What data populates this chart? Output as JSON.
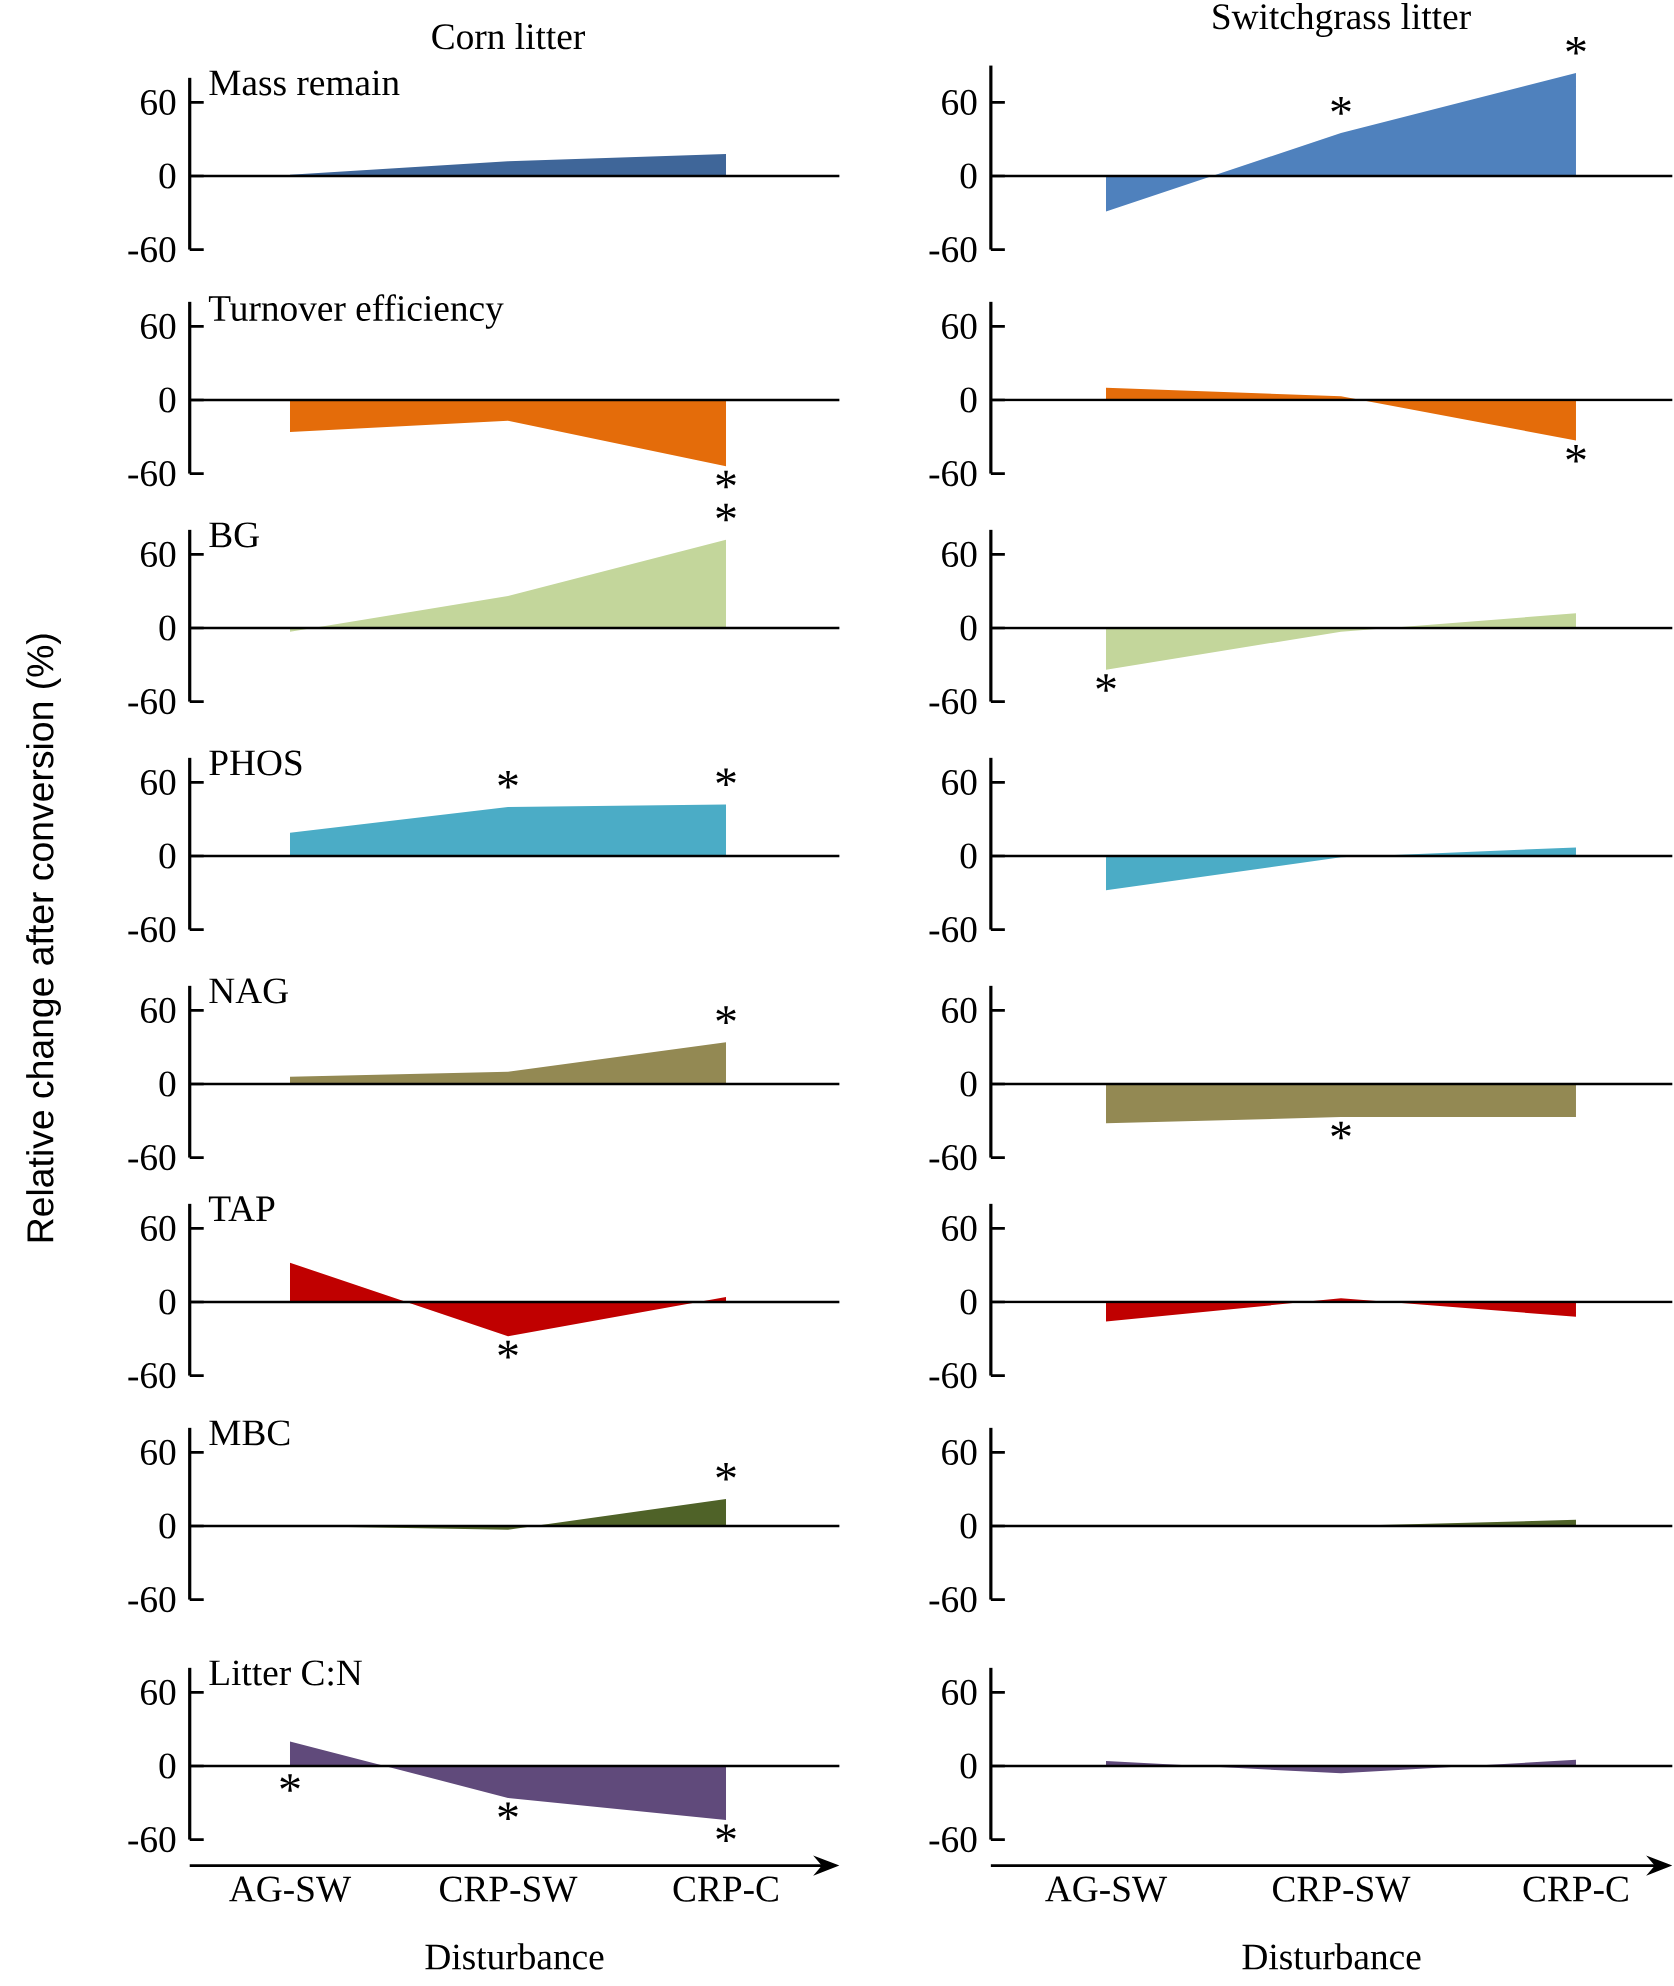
{
  "chart_data": [
    {
      "type": "area",
      "title": "Mass remain",
      "subtitle": "Corn litter",
      "categories": [
        "AG-SW",
        "CRP-SW",
        "CRP-C"
      ],
      "values": [
        1,
        12,
        18
      ],
      "color": "#3f6699",
      "ylim": [
        -60,
        80
      ],
      "yticks": [
        -60,
        0,
        60
      ],
      "tick_labels": "y",
      "ref_lines": [
        {
          "axis": "y",
          "value": 0
        }
      ]
    },
    {
      "type": "area",
      "subtitle": "Switchgrass litter",
      "categories": [
        "AG-SW",
        "CRP-SW",
        "CRP-C"
      ],
      "values": [
        -29,
        35,
        84
      ],
      "color": "#4f81bd",
      "ylim": [
        -60,
        90
      ],
      "yticks": [
        -60,
        0,
        60
      ],
      "tick_labels": "y",
      "ref_lines": [
        {
          "axis": "y",
          "value": 0
        }
      ],
      "annotations": [
        {
          "text": "*",
          "x": "CRP-SW",
          "y": 35
        },
        {
          "text": "*",
          "x": "CRP-C",
          "y": 84
        }
      ]
    },
    {
      "type": "area",
      "title": "Turnover efficiency",
      "categories": [
        "AG-SW",
        "CRP-SW",
        "CRP-C"
      ],
      "values": [
        -26,
        -17,
        -54
      ],
      "color": "#e46c0a",
      "ylim": [
        -60,
        80
      ],
      "yticks": [
        -60,
        0,
        60
      ],
      "tick_labels": "y",
      "ref_lines": [
        {
          "axis": "y",
          "value": 0
        }
      ],
      "annotations": [
        {
          "text": "*",
          "x": "CRP-C",
          "y": -54
        }
      ]
    },
    {
      "type": "area",
      "categories": [
        "AG-SW",
        "CRP-SW",
        "CRP-C"
      ],
      "values": [
        10,
        3,
        -33
      ],
      "color": "#e46c0a",
      "ylim": [
        -60,
        80
      ],
      "yticks": [
        -60,
        0,
        60
      ],
      "tick_labels": "y",
      "ref_lines": [
        {
          "axis": "y",
          "value": 0
        }
      ],
      "annotations": [
        {
          "text": "*",
          "x": "CRP-C",
          "y": -33
        }
      ]
    },
    {
      "type": "area",
      "title": "BG",
      "categories": [
        "AG-SW",
        "CRP-SW",
        "CRP-C"
      ],
      "values": [
        -3,
        26,
        72
      ],
      "color": "#c3d69b",
      "ylim": [
        -60,
        80
      ],
      "yticks": [
        -60,
        0,
        60
      ],
      "tick_labels": "y",
      "ref_lines": [
        {
          "axis": "y",
          "value": 0
        }
      ],
      "annotations": [
        {
          "text": "*",
          "x": "CRP-C",
          "y": 72
        }
      ]
    },
    {
      "type": "area",
      "categories": [
        "AG-SW",
        "CRP-SW",
        "CRP-C"
      ],
      "values": [
        -34,
        -3,
        12
      ],
      "color": "#c3d69b",
      "ylim": [
        -60,
        80
      ],
      "yticks": [
        -60,
        0,
        60
      ],
      "tick_labels": "y",
      "ref_lines": [
        {
          "axis": "y",
          "value": 0
        }
      ],
      "annotations": [
        {
          "text": "*",
          "x": "AG-SW",
          "y": -34
        }
      ]
    },
    {
      "type": "area",
      "title": "PHOS",
      "ylabel": "Relative change after conversion (%)",
      "categories": [
        "AG-SW",
        "CRP-SW",
        "CRP-C"
      ],
      "values": [
        19,
        40,
        42
      ],
      "color": "#4bacc6",
      "ylim": [
        -60,
        80
      ],
      "yticks": [
        -60,
        0,
        60
      ],
      "tick_labels": "y",
      "ref_lines": [
        {
          "axis": "y",
          "value": 0
        }
      ],
      "annotations": [
        {
          "text": "*",
          "x": "CRP-SW",
          "y": 40
        },
        {
          "text": "*",
          "x": "CRP-C",
          "y": 42
        }
      ]
    },
    {
      "type": "area",
      "categories": [
        "AG-SW",
        "CRP-SW",
        "CRP-C"
      ],
      "values": [
        -28,
        -1,
        7
      ],
      "color": "#4bacc6",
      "ylim": [
        -60,
        80
      ],
      "yticks": [
        -60,
        0,
        60
      ],
      "tick_labels": "y",
      "ref_lines": [
        {
          "axis": "y",
          "value": 0
        }
      ]
    },
    {
      "type": "area",
      "title": "NAG",
      "categories": [
        "AG-SW",
        "CRP-SW",
        "CRP-C"
      ],
      "values": [
        6,
        10,
        34
      ],
      "color": "#938953",
      "ylim": [
        -60,
        80
      ],
      "yticks": [
        -60,
        0,
        60
      ],
      "tick_labels": "y",
      "ref_lines": [
        {
          "axis": "y",
          "value": 0
        }
      ],
      "annotations": [
        {
          "text": "*",
          "x": "CRP-C",
          "y": 34
        }
      ]
    },
    {
      "type": "area",
      "categories": [
        "AG-SW",
        "CRP-SW",
        "CRP-C"
      ],
      "values": [
        -32,
        -27,
        -27
      ],
      "color": "#938953",
      "ylim": [
        -60,
        80
      ],
      "yticks": [
        -60,
        0,
        60
      ],
      "tick_labels": "y",
      "ref_lines": [
        {
          "axis": "y",
          "value": 0
        }
      ],
      "annotations": [
        {
          "text": "*",
          "x": "CRP-SW",
          "y": -27
        }
      ]
    },
    {
      "type": "area",
      "title": "TAP",
      "categories": [
        "AG-SW",
        "CRP-SW",
        "CRP-C"
      ],
      "values": [
        32,
        -28,
        4
      ],
      "color": "#c00000",
      "ylim": [
        -60,
        80
      ],
      "yticks": [
        -60,
        0,
        60
      ],
      "tick_labels": "y",
      "ref_lines": [
        {
          "axis": "y",
          "value": 0
        }
      ],
      "annotations": [
        {
          "text": "*",
          "x": "CRP-SW",
          "y": -28
        }
      ]
    },
    {
      "type": "area",
      "categories": [
        "AG-SW",
        "CRP-SW",
        "CRP-C"
      ],
      "values": [
        -16,
        3,
        -12
      ],
      "color": "#c00000",
      "ylim": [
        -60,
        80
      ],
      "yticks": [
        -60,
        0,
        60
      ],
      "tick_labels": "y",
      "ref_lines": [
        {
          "axis": "y",
          "value": 0
        }
      ]
    },
    {
      "type": "area",
      "title": "MBC",
      "categories": [
        "AG-SW",
        "CRP-SW",
        "CRP-C"
      ],
      "values": [
        0,
        -3,
        22
      ],
      "color": "#4f6228",
      "ylim": [
        -60,
        80
      ],
      "yticks": [
        -60,
        0,
        60
      ],
      "tick_labels": "y",
      "ref_lines": [
        {
          "axis": "y",
          "value": 0
        }
      ],
      "annotations": [
        {
          "text": "*",
          "x": "CRP-C",
          "y": 22
        }
      ]
    },
    {
      "type": "area",
      "categories": [
        "AG-SW",
        "CRP-SW",
        "CRP-C"
      ],
      "values": [
        0,
        0,
        5
      ],
      "color": "#4f6228",
      "ylim": [
        -60,
        80
      ],
      "yticks": [
        -60,
        0,
        60
      ],
      "tick_labels": "y",
      "ref_lines": [
        {
          "axis": "y",
          "value": 0
        }
      ]
    },
    {
      "type": "area",
      "title": "Litter C:N",
      "xlabel": "Disturbance",
      "categories": [
        "AG-SW",
        "CRP-SW",
        "CRP-C"
      ],
      "values": [
        20,
        -26,
        -44
      ],
      "color": "#604a7b",
      "ylim": [
        -60,
        80
      ],
      "yticks": [
        -60,
        0,
        60
      ],
      "ref_lines": [
        {
          "axis": "y",
          "value": 0
        }
      ],
      "annotations": [
        {
          "text": "*",
          "x": "AG-SW",
          "y": -3
        },
        {
          "text": "*",
          "x": "CRP-SW",
          "y": -26
        },
        {
          "text": "*",
          "x": "CRP-C",
          "y": -44
        }
      ]
    },
    {
      "type": "area",
      "xlabel": "Disturbance",
      "categories": [
        "AG-SW",
        "CRP-SW",
        "CRP-C"
      ],
      "values": [
        4,
        -6,
        5
      ],
      "color": "#604a7b",
      "ylim": [
        -60,
        80
      ],
      "yticks": [
        -60,
        0,
        60
      ],
      "ref_lines": [
        {
          "axis": "y",
          "value": 0
        }
      ]
    }
  ]
}
